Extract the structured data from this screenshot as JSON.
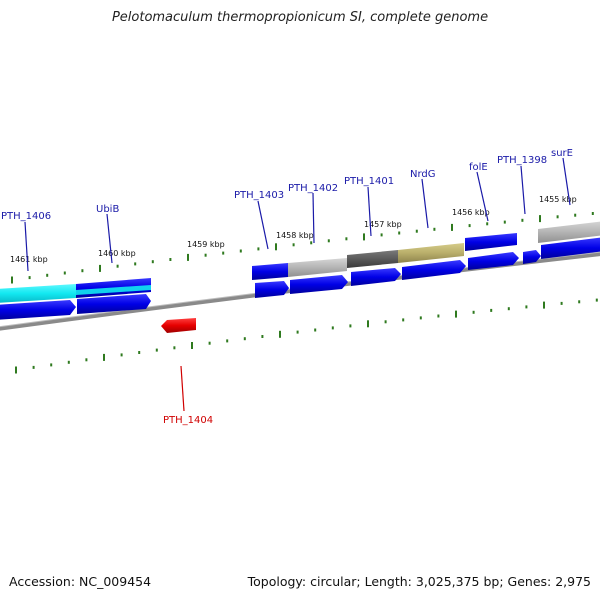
{
  "header": {
    "title": "Pelotomaculum thermopropionicum SI, complete genome"
  },
  "footer": {
    "accession": "Accession: NC_009454",
    "topology": "Topology: circular; Length: 3,025,375 bp; Genes: 2,975"
  },
  "colors": {
    "blue": "#0000e6",
    "cyan": "#12e8f0",
    "red": "#e60000",
    "dark_gray": "#5a5a5a",
    "light_gray": "#b4b4b4",
    "khaki": "#b9ae6a",
    "tick_green": "#2f7a1f",
    "label_blue": "#1a1aa8",
    "label_red": "#d00000"
  },
  "scale_labels": [
    "1461 kbp",
    "1460 kbp",
    "1459 kbp",
    "1458 kbp",
    "1457 kbp",
    "1456 kbp",
    "1455 kbp"
  ],
  "gene_labels": [
    "PTH_1406",
    "UbiB",
    "PTH_1403",
    "PTH_1402",
    "PTH_1401",
    "NrdG",
    "folE",
    "PTH_1398",
    "surE"
  ],
  "reverse_label": "PTH_1404"
}
